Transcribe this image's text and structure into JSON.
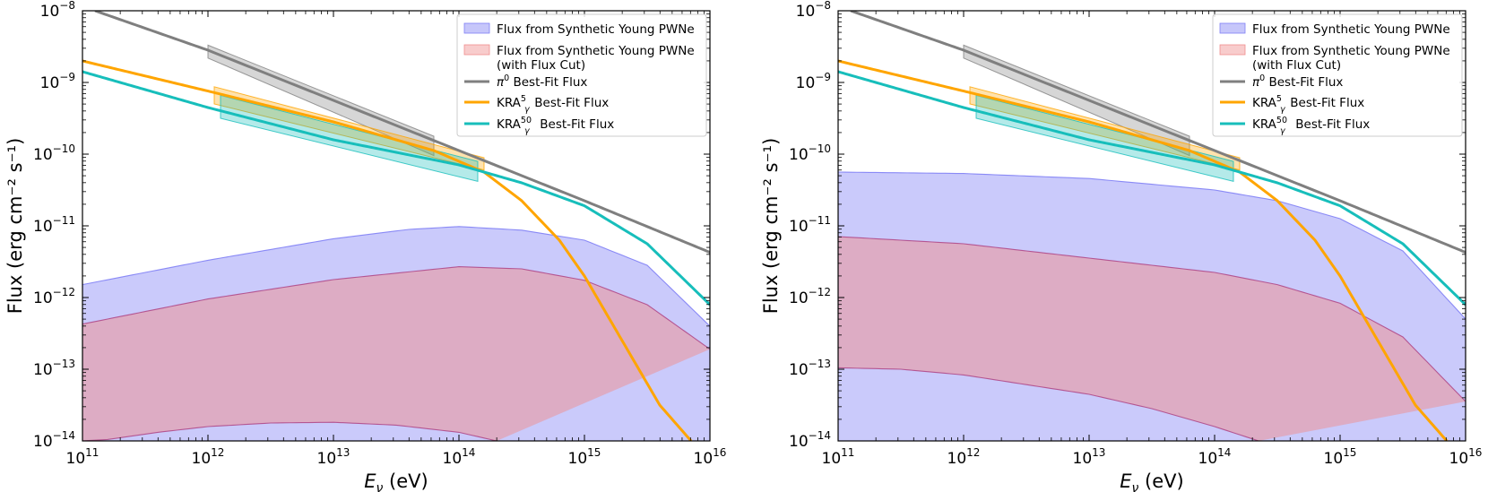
{
  "figure": {
    "panel_count": 2
  },
  "colors": {
    "pwne_fill": "#8080f5",
    "pwne_cut_fill": "#f08e8e",
    "pwne_cut_edge": "#b04a8a",
    "pi0": "#7f7f7f",
    "kra5": "#ffa500",
    "kra50": "#17bebb"
  },
  "chart_data": [
    {
      "type": "line",
      "xscale": "log",
      "yscale": "log",
      "xlim": [
        100000000000.0,
        1e+16
      ],
      "ylim": [
        1e-14,
        1e-08
      ],
      "xlabel_main": "E",
      "xlabel_sub": "ν",
      "xlabel_unit": " (eV)",
      "ylabel": "Flux (erg cm⁻² s⁻¹)",
      "x_ticks": [
        {
          "base": "10",
          "exp": "11"
        },
        {
          "base": "10",
          "exp": "12"
        },
        {
          "base": "10",
          "exp": "13"
        },
        {
          "base": "10",
          "exp": "14"
        },
        {
          "base": "10",
          "exp": "15"
        },
        {
          "base": "10",
          "exp": "16"
        }
      ],
      "y_ticks": [
        {
          "base": "10",
          "exp": "−14"
        },
        {
          "base": "10",
          "exp": "−13"
        },
        {
          "base": "10",
          "exp": "−12"
        },
        {
          "base": "10",
          "exp": "−11"
        },
        {
          "base": "10",
          "exp": "−10"
        },
        {
          "base": "10",
          "exp": "−9"
        },
        {
          "base": "10",
          "exp": "−8"
        }
      ],
      "legend_position": "top-right",
      "legend": [
        {
          "kind": "patch",
          "color_key": "pwne_fill",
          "lines": [
            "Flux from Synthetic Young PWNe"
          ]
        },
        {
          "kind": "patch",
          "color_key": "pwne_cut_fill",
          "lines": [
            "Flux from Synthetic Young PWNe",
            "(with Flux Cut)"
          ]
        },
        {
          "kind": "line",
          "color_key": "pi0",
          "main": "π",
          "sup": "0",
          "sub": "",
          "rest": " Best-Fit Flux"
        },
        {
          "kind": "line",
          "color_key": "kra5",
          "main": "KRA",
          "sup": "5",
          "sub": "γ",
          "rest": " Best-Fit Flux"
        },
        {
          "kind": "line",
          "color_key": "kra50",
          "main": "KRA",
          "sup": "50",
          "sub": "γ",
          "rest": " Best-Fit Flux"
        }
      ],
      "bands": [
        {
          "name": "pwne-band",
          "color_key": "pwne_fill",
          "edge_key": "pwne_fill",
          "upper_log": [
            [
              11,
              -11.82
            ],
            [
              12,
              -11.48
            ],
            [
              13,
              -11.18
            ],
            [
              13.6,
              -11.05
            ],
            [
              14,
              -11.01
            ],
            [
              14.5,
              -11.06
            ],
            [
              15,
              -11.2
            ],
            [
              15.5,
              -11.55
            ],
            [
              16,
              -12.4
            ]
          ],
          "lower_log": [
            [
              11,
              -14
            ],
            [
              16,
              -14
            ]
          ]
        },
        {
          "name": "pwne-cut-band",
          "color_key": "pwne_cut_fill",
          "edge_key": "pwne_cut_edge",
          "upper_log": [
            [
              11,
              -12.37
            ],
            [
              12,
              -12.02
            ],
            [
              13,
              -11.75
            ],
            [
              14,
              -11.57
            ],
            [
              14.5,
              -11.6
            ],
            [
              15,
              -11.76
            ],
            [
              15.5,
              -12.1
            ],
            [
              16,
              -12.72
            ]
          ],
          "lower_log": [
            [
              11,
              -14
            ],
            [
              11.2,
              -13.98
            ],
            [
              11.6,
              -13.88
            ],
            [
              12,
              -13.8
            ],
            [
              12.5,
              -13.75
            ],
            [
              13,
              -13.74
            ],
            [
              13.5,
              -13.78
            ],
            [
              14,
              -13.88
            ],
            [
              14.3,
              -14
            ]
          ]
        }
      ],
      "error_boxes": [
        {
          "name": "pi0-error-box",
          "color_key": "pi0",
          "x_log": [
            12,
            13.8
          ],
          "upper_log": [
            -8.48,
            -9.75
          ],
          "lower_log": [
            -8.66,
            -10.02
          ]
        },
        {
          "name": "kra5-error-box",
          "color_key": "kra5",
          "x_log": [
            12.05,
            14.2
          ],
          "upper_log": [
            -9.06,
            -10.05
          ],
          "lower_log": [
            -9.3,
            -10.22
          ]
        },
        {
          "name": "kra50-error-box",
          "color_key": "kra50",
          "x_log": [
            12.1,
            14.15
          ],
          "upper_log": [
            -9.18,
            -10.1
          ],
          "lower_log": [
            -9.5,
            -10.38
          ]
        }
      ],
      "series": [
        {
          "name": "pi0-best-fit",
          "color_key": "pi0",
          "points_log": [
            [
              11.1,
              -8
            ],
            [
              12,
              -8.55
            ],
            [
              13,
              -9.25
            ],
            [
              14,
              -9.95
            ],
            [
              15,
              -10.65
            ],
            [
              16,
              -11.37
            ]
          ]
        },
        {
          "name": "kra5-best-fit",
          "color_key": "kra5",
          "points_log": [
            [
              11,
              -8.7
            ],
            [
              12,
              -9.12
            ],
            [
              13,
              -9.55
            ],
            [
              13.8,
              -9.95
            ],
            [
              14.2,
              -10.25
            ],
            [
              14.5,
              -10.65
            ],
            [
              14.8,
              -11.2
            ],
            [
              15,
              -11.7
            ],
            [
              15.3,
              -12.6
            ],
            [
              15.6,
              -13.5
            ],
            [
              15.85,
              -14
            ]
          ]
        },
        {
          "name": "kra50-best-fit",
          "color_key": "kra50",
          "points_log": [
            [
              11,
              -8.85
            ],
            [
              12,
              -9.35
            ],
            [
              13,
              -9.8
            ],
            [
              14,
              -10.15
            ],
            [
              14.5,
              -10.4
            ],
            [
              15,
              -10.72
            ],
            [
              15.5,
              -11.25
            ],
            [
              16,
              -12.1
            ]
          ]
        }
      ]
    },
    {
      "type": "line",
      "xscale": "log",
      "yscale": "log",
      "xlim": [
        100000000000.0,
        1e+16
      ],
      "ylim": [
        1e-14,
        1e-08
      ],
      "xlabel_main": "E",
      "xlabel_sub": "ν",
      "xlabel_unit": " (eV)",
      "ylabel": "Flux (erg cm⁻² s⁻¹)",
      "x_ticks": [
        {
          "base": "10",
          "exp": "11"
        },
        {
          "base": "10",
          "exp": "12"
        },
        {
          "base": "10",
          "exp": "13"
        },
        {
          "base": "10",
          "exp": "14"
        },
        {
          "base": "10",
          "exp": "15"
        },
        {
          "base": "10",
          "exp": "16"
        }
      ],
      "y_ticks": [
        {
          "base": "10",
          "exp": "−14"
        },
        {
          "base": "10",
          "exp": "−13"
        },
        {
          "base": "10",
          "exp": "−12"
        },
        {
          "base": "10",
          "exp": "−11"
        },
        {
          "base": "10",
          "exp": "−10"
        },
        {
          "base": "10",
          "exp": "−9"
        },
        {
          "base": "10",
          "exp": "−8"
        }
      ],
      "legend_position": "top-right",
      "legend": [
        {
          "kind": "patch",
          "color_key": "pwne_fill",
          "lines": [
            "Flux from Synthetic Young PWNe"
          ]
        },
        {
          "kind": "patch",
          "color_key": "pwne_cut_fill",
          "lines": [
            "Flux from Synthetic Young PWNe",
            "(with Flux Cut)"
          ]
        },
        {
          "kind": "line",
          "color_key": "pi0",
          "main": "π",
          "sup": "0",
          "sub": "",
          "rest": " Best-Fit Flux"
        },
        {
          "kind": "line",
          "color_key": "kra5",
          "main": "KRA",
          "sup": "5",
          "sub": "γ",
          "rest": " Best-Fit Flux"
        },
        {
          "kind": "line",
          "color_key": "kra50",
          "main": "KRA",
          "sup": "50",
          "sub": "γ",
          "rest": " Best-Fit Flux"
        }
      ],
      "bands": [
        {
          "name": "pwne-band",
          "color_key": "pwne_fill",
          "edge_key": "pwne_fill",
          "upper_log": [
            [
              11,
              -10.25
            ],
            [
              12,
              -10.27
            ],
            [
              13,
              -10.34
            ],
            [
              14,
              -10.5
            ],
            [
              14.5,
              -10.65
            ],
            [
              15,
              -10.9
            ],
            [
              15.5,
              -11.35
            ],
            [
              16,
              -12.3
            ]
          ],
          "lower_log": [
            [
              11,
              -14
            ],
            [
              16,
              -14
            ]
          ]
        },
        {
          "name": "pwne-cut-band",
          "color_key": "pwne_cut_fill",
          "edge_key": "pwne_cut_edge",
          "upper_log": [
            [
              11,
              -11.15
            ],
            [
              12,
              -11.25
            ],
            [
              13,
              -11.45
            ],
            [
              14,
              -11.65
            ],
            [
              14.5,
              -11.82
            ],
            [
              15,
              -12.08
            ],
            [
              15.5,
              -12.55
            ],
            [
              16,
              -13.45
            ]
          ],
          "lower_log": [
            [
              11,
              -12.98
            ],
            [
              11.5,
              -13.0
            ],
            [
              12,
              -13.08
            ],
            [
              13,
              -13.35
            ],
            [
              13.5,
              -13.55
            ],
            [
              14,
              -13.8
            ],
            [
              14.35,
              -14
            ]
          ]
        }
      ],
      "error_boxes": [
        {
          "name": "pi0-error-box",
          "color_key": "pi0",
          "x_log": [
            12,
            13.8
          ],
          "upper_log": [
            -8.48,
            -9.75
          ],
          "lower_log": [
            -8.66,
            -10.02
          ]
        },
        {
          "name": "kra5-error-box",
          "color_key": "kra5",
          "x_log": [
            12.05,
            14.2
          ],
          "upper_log": [
            -9.06,
            -10.05
          ],
          "lower_log": [
            -9.3,
            -10.22
          ]
        },
        {
          "name": "kra50-error-box",
          "color_key": "kra50",
          "x_log": [
            12.1,
            14.15
          ],
          "upper_log": [
            -9.18,
            -10.1
          ],
          "lower_log": [
            -9.5,
            -10.38
          ]
        }
      ],
      "series": [
        {
          "name": "pi0-best-fit",
          "color_key": "pi0",
          "points_log": [
            [
              11.1,
              -8
            ],
            [
              12,
              -8.55
            ],
            [
              13,
              -9.25
            ],
            [
              14,
              -9.95
            ],
            [
              15,
              -10.65
            ],
            [
              16,
              -11.37
            ]
          ]
        },
        {
          "name": "kra5-best-fit",
          "color_key": "kra5",
          "points_log": [
            [
              11,
              -8.7
            ],
            [
              12,
              -9.12
            ],
            [
              13,
              -9.55
            ],
            [
              13.8,
              -9.95
            ],
            [
              14.2,
              -10.25
            ],
            [
              14.5,
              -10.65
            ],
            [
              14.8,
              -11.2
            ],
            [
              15,
              -11.7
            ],
            [
              15.3,
              -12.6
            ],
            [
              15.6,
              -13.5
            ],
            [
              15.85,
              -14
            ]
          ]
        },
        {
          "name": "kra50-best-fit",
          "color_key": "kra50",
          "points_log": [
            [
              11,
              -8.85
            ],
            [
              12,
              -9.35
            ],
            [
              13,
              -9.8
            ],
            [
              14,
              -10.15
            ],
            [
              14.5,
              -10.4
            ],
            [
              15,
              -10.72
            ],
            [
              15.5,
              -11.25
            ],
            [
              16,
              -12.1
            ]
          ]
        }
      ]
    }
  ]
}
